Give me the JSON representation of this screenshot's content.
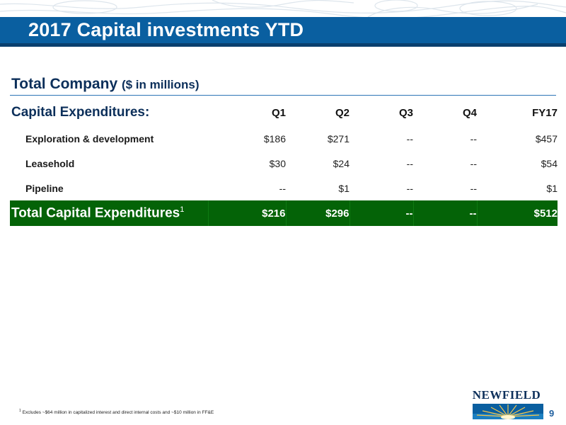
{
  "slide": {
    "title": "2017 Capital investments YTD",
    "page_number": "9"
  },
  "section": {
    "heading": "Total Company",
    "subheading": "($ in millions)"
  },
  "table": {
    "header_label": "Capital Expenditures:",
    "columns": [
      "Q1",
      "Q2",
      "Q3",
      "Q4",
      "FY17"
    ],
    "rows": [
      {
        "label": "Exploration & development",
        "values": [
          "$186",
          "$271",
          "--",
          "--",
          "$457"
        ]
      },
      {
        "label": "Leasehold",
        "values": [
          "$30",
          "$24",
          "--",
          "--",
          "$54"
        ]
      },
      {
        "label": "Pipeline",
        "values": [
          "--",
          "$1",
          "--",
          "--",
          "$1"
        ]
      }
    ],
    "total": {
      "label": "Total Capital Expenditures",
      "footnote_ref": "1",
      "values": [
        "$216",
        "$296",
        "--",
        "--",
        "$512"
      ]
    }
  },
  "footnote": {
    "marker": "1",
    "text": "Excludes ~$64 million in capitalized interest and direct internal costs and ~$10 million in FF&E"
  },
  "logo": {
    "text": "NEWFIELD"
  },
  "colors": {
    "title_bar": "#0a5fa0",
    "total_row": "#046307",
    "heading_text": "#0c2f5a"
  }
}
